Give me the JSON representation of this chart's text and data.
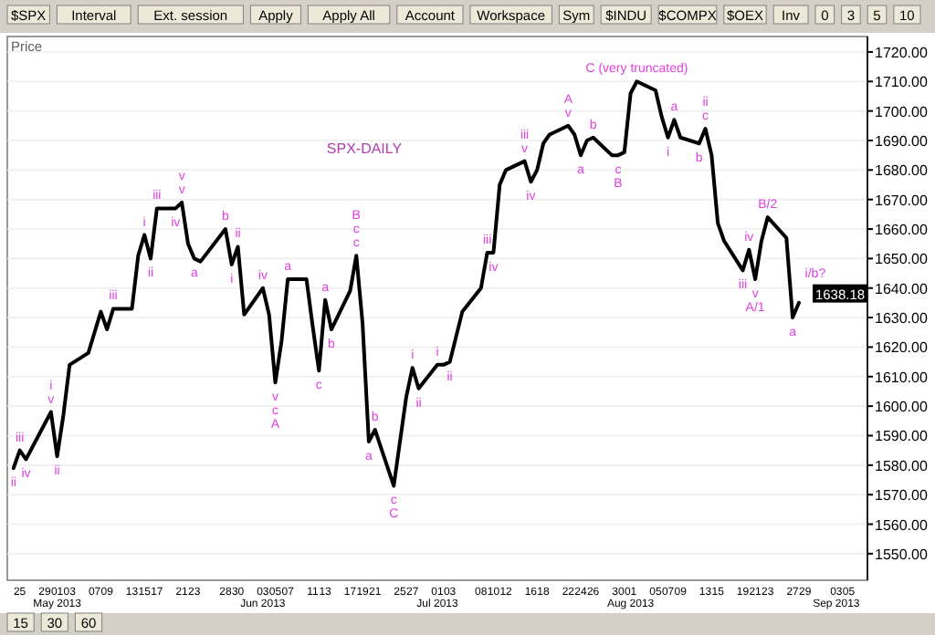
{
  "chart_data": {
    "type": "line",
    "title": "SPX-DAILY",
    "ylabel": "Price",
    "x": [
      "2013-04-24",
      "2013-04-25",
      "2013-04-26",
      "2013-04-29",
      "2013-04-30",
      "2013-05-01",
      "2013-05-02",
      "2013-05-03",
      "2013-05-06",
      "2013-05-07",
      "2013-05-08",
      "2013-05-09",
      "2013-05-10",
      "2013-05-13",
      "2013-05-14",
      "2013-05-15",
      "2013-05-16",
      "2013-05-17",
      "2013-05-20",
      "2013-05-21",
      "2013-05-22",
      "2013-05-23",
      "2013-05-24",
      "2013-05-28",
      "2013-05-29",
      "2013-05-30",
      "2013-05-31",
      "2013-06-03",
      "2013-06-04",
      "2013-06-05",
      "2013-06-06",
      "2013-06-07",
      "2013-06-10",
      "2013-06-11",
      "2013-06-12",
      "2013-06-13",
      "2013-06-14",
      "2013-06-17",
      "2013-06-18",
      "2013-06-19",
      "2013-06-20",
      "2013-06-21",
      "2013-06-24",
      "2013-06-25",
      "2013-06-26",
      "2013-06-27",
      "2013-06-28",
      "2013-07-01",
      "2013-07-02",
      "2013-07-03",
      "2013-07-05",
      "2013-07-08",
      "2013-07-09",
      "2013-07-10",
      "2013-07-11",
      "2013-07-12",
      "2013-07-15",
      "2013-07-16",
      "2013-07-17",
      "2013-07-18",
      "2013-07-19",
      "2013-07-22",
      "2013-07-23",
      "2013-07-24",
      "2013-07-25",
      "2013-07-26",
      "2013-07-29",
      "2013-07-30",
      "2013-07-31",
      "2013-08-01",
      "2013-08-02",
      "2013-08-05",
      "2013-08-06",
      "2013-08-07",
      "2013-08-08",
      "2013-08-09",
      "2013-08-12",
      "2013-08-13",
      "2013-08-14",
      "2013-08-15",
      "2013-08-16",
      "2013-08-19",
      "2013-08-20",
      "2013-08-21",
      "2013-08-22",
      "2013-08-23",
      "2013-08-26",
      "2013-08-27",
      "2013-08-28"
    ],
    "series": [
      {
        "color": "#000000",
        "values": [
          1579,
          1585,
          1582,
          1594,
          1598,
          1583,
          1597,
          1614,
          1618,
          1625,
          1632,
          1626,
          1633,
          1633,
          1651,
          1658,
          1650,
          1667,
          1667,
          1669,
          1655,
          1650,
          1649,
          1660,
          1648,
          1654,
          1631,
          1640,
          1631,
          1608,
          1622,
          1643,
          1643,
          1627,
          1612,
          1636,
          1626,
          1639,
          1651,
          1628,
          1588,
          1592,
          1573,
          1588,
          1603,
          1613,
          1606,
          1614,
          1614,
          1615,
          1632,
          1640,
          1652,
          1652,
          1675,
          1680,
          1683,
          1676,
          1680,
          1689,
          1692,
          1695,
          1692,
          1685,
          1690,
          1691,
          1685,
          1685,
          1686,
          1706,
          1710,
          1707,
          1698,
          1691,
          1697,
          1691,
          1689,
          1694,
          1685,
          1662,
          1656,
          1646,
          1653,
          1643,
          1656,
          1664,
          1657,
          1630,
          1635
        ]
      }
    ],
    "xlim": [
      "2013-04-23",
      "2013-09-08"
    ],
    "xticks": [
      {
        "value": "2013-04-25",
        "label": "25"
      },
      {
        "value": "2013-04-29",
        "label": "29"
      },
      {
        "value": "2013-05-01",
        "label": "01\nMay 2013"
      },
      {
        "value": "2013-05-03",
        "label": "03"
      },
      {
        "value": "2013-05-07",
        "label": "07"
      },
      {
        "value": "2013-05-09",
        "label": "09"
      },
      {
        "value": "2013-05-13",
        "label": "13"
      },
      {
        "value": "2013-05-15",
        "label": "15"
      },
      {
        "value": "2013-05-17",
        "label": "17"
      },
      {
        "value": "2013-05-21",
        "label": "21"
      },
      {
        "value": "2013-05-23",
        "label": "23"
      },
      {
        "value": "2013-05-28",
        "label": "28"
      },
      {
        "value": "2013-05-30",
        "label": "30"
      },
      {
        "value": "2013-06-03",
        "label": "03\nJun 2013"
      },
      {
        "value": "2013-06-05",
        "label": "05"
      },
      {
        "value": "2013-06-07",
        "label": "07"
      },
      {
        "value": "2013-06-11",
        "label": "11"
      },
      {
        "value": "2013-06-13",
        "label": "13"
      },
      {
        "value": "2013-06-17",
        "label": "17"
      },
      {
        "value": "2013-06-19",
        "label": "19"
      },
      {
        "value": "2013-06-21",
        "label": "21"
      },
      {
        "value": "2013-06-25",
        "label": "25"
      },
      {
        "value": "2013-06-27",
        "label": "27"
      },
      {
        "value": "2013-07-01",
        "label": "01\nJul 2013"
      },
      {
        "value": "2013-07-03",
        "label": "03"
      },
      {
        "value": "2013-07-08",
        "label": "08"
      },
      {
        "value": "2013-07-10",
        "label": "10"
      },
      {
        "value": "2013-07-12",
        "label": "12"
      },
      {
        "value": "2013-07-16",
        "label": "16"
      },
      {
        "value": "2013-07-18",
        "label": "18"
      },
      {
        "value": "2013-07-22",
        "label": "22"
      },
      {
        "value": "2013-07-24",
        "label": "24"
      },
      {
        "value": "2013-07-26",
        "label": "26"
      },
      {
        "value": "2013-07-30",
        "label": "30"
      },
      {
        "value": "2013-08-01",
        "label": "01\nAug 2013"
      },
      {
        "value": "2013-08-05",
        "label": "05"
      },
      {
        "value": "2013-08-07",
        "label": "07"
      },
      {
        "value": "2013-08-09",
        "label": "09"
      },
      {
        "value": "2013-08-13",
        "label": "13"
      },
      {
        "value": "2013-08-15",
        "label": "15"
      },
      {
        "value": "2013-08-19",
        "label": "19"
      },
      {
        "value": "2013-08-21",
        "label": "21"
      },
      {
        "value": "2013-08-23",
        "label": "23"
      },
      {
        "value": "2013-08-27",
        "label": "27"
      },
      {
        "value": "2013-08-29",
        "label": "29"
      },
      {
        "value": "2013-09-03",
        "label": "03\nSep 2013"
      },
      {
        "value": "2013-09-05",
        "label": "05"
      }
    ],
    "ylim": [
      1541,
      1724
    ],
    "yticks": [
      {
        "value": 1550,
        "label": "1550.00"
      },
      {
        "value": 1560,
        "label": "1560.00"
      },
      {
        "value": 1570,
        "label": "1570.00"
      },
      {
        "value": 1580,
        "label": "1580.00"
      },
      {
        "value": 1590,
        "label": "1590.00"
      },
      {
        "value": 1600,
        "label": "1600.00"
      },
      {
        "value": 1610,
        "label": "1610.00"
      },
      {
        "value": 1620,
        "label": "1620.00"
      },
      {
        "value": 1630,
        "label": "1630.00"
      },
      {
        "value": 1640,
        "label": "1640.00"
      },
      {
        "value": 1650,
        "label": "1650.00"
      },
      {
        "value": 1660,
        "label": "1660.00"
      },
      {
        "value": 1670,
        "label": "1670.00"
      },
      {
        "value": 1680,
        "label": "1680.00"
      },
      {
        "value": 1690,
        "label": "1690.00"
      },
      {
        "value": 1700,
        "label": "1700.00"
      },
      {
        "value": 1710,
        "label": "1710.00"
      },
      {
        "value": 1720,
        "label": "1720.00"
      }
    ],
    "grid": "y",
    "annotations": [
      "$SPX",
      "Interval",
      "Ext. session",
      "Apply",
      "Apply All",
      "Account",
      "Workspace",
      "Sym",
      "$INDU",
      "$COMPX",
      "$OEX",
      "Inv",
      "0",
      "3",
      "5",
      "10",
      "15",
      "30",
      "60",
      {
        "text": "1638.18",
        "y": 1638.18
      },
      {
        "text": "ii",
        "x": "2013-04-24",
        "y": 1579
      },
      {
        "text": "iii",
        "x": "2013-04-25",
        "y": 1585
      },
      {
        "text": "iv",
        "x": "2013-04-26",
        "y": 1582
      },
      {
        "text": "v",
        "x": "2013-04-30",
        "y": 1598
      },
      {
        "text": "i",
        "x": "2013-04-30",
        "y": 1598
      },
      {
        "text": "ii",
        "x": "2013-05-01",
        "y": 1583
      },
      {
        "text": "iii",
        "x": "2013-05-10",
        "y": 1633
      },
      {
        "text": "i",
        "x": "2013-05-15",
        "y": 1658
      },
      {
        "text": "ii",
        "x": "2013-05-16",
        "y": 1650
      },
      {
        "text": "iii",
        "x": "2013-05-17",
        "y": 1667
      },
      {
        "text": "iv",
        "x": "2013-05-20",
        "y": 1667
      },
      {
        "text": "v",
        "x": "2013-05-21",
        "y": 1669
      },
      {
        "text": "v",
        "x": "2013-05-21",
        "y": 1669
      },
      {
        "text": "a",
        "x": "2013-05-23",
        "y": 1650
      },
      {
        "text": "b",
        "x": "2013-05-28",
        "y": 1660
      },
      {
        "text": "i",
        "x": "2013-05-29",
        "y": 1648
      },
      {
        "text": "ii",
        "x": "2013-05-30",
        "y": 1654
      },
      {
        "text": "iv",
        "x": "2013-06-03",
        "y": 1640
      },
      {
        "text": "v",
        "x": "2013-06-05",
        "y": 1608
      },
      {
        "text": "c",
        "x": "2013-06-05",
        "y": 1608
      },
      {
        "text": "A",
        "x": "2013-06-05",
        "y": 1608
      },
      {
        "text": "a",
        "x": "2013-06-07",
        "y": 1643
      },
      {
        "text": "c",
        "x": "2013-06-12",
        "y": 1612
      },
      {
        "text": "a",
        "x": "2013-06-13",
        "y": 1636
      },
      {
        "text": "b",
        "x": "2013-06-14",
        "y": 1626
      },
      {
        "text": "c",
        "x": "2013-06-18",
        "y": 1651
      },
      {
        "text": "c",
        "x": "2013-06-18",
        "y": 1651
      },
      {
        "text": "B",
        "x": "2013-06-18",
        "y": 1651
      },
      {
        "text": "a",
        "x": "2013-06-20",
        "y": 1588
      },
      {
        "text": "b",
        "x": "2013-06-21",
        "y": 1592
      },
      {
        "text": "c",
        "x": "2013-06-24",
        "y": 1573
      },
      {
        "text": "C",
        "x": "2013-06-24",
        "y": 1573
      },
      {
        "text": "i",
        "x": "2013-06-27",
        "y": 1613
      },
      {
        "text": "ii",
        "x": "2013-06-28",
        "y": 1606
      },
      {
        "text": "i",
        "x": "2013-07-01",
        "y": 1614
      },
      {
        "text": "ii",
        "x": "2013-07-03",
        "y": 1615
      },
      {
        "text": "iii",
        "x": "2013-07-09",
        "y": 1652
      },
      {
        "text": "iv",
        "x": "2013-07-10",
        "y": 1652
      },
      {
        "text": "v",
        "x": "2013-07-15",
        "y": 1683
      },
      {
        "text": "iii",
        "x": "2013-07-15",
        "y": 1683
      },
      {
        "text": "iv",
        "x": "2013-07-16",
        "y": 1676
      },
      {
        "text": "v",
        "x": "2013-07-22",
        "y": 1695
      },
      {
        "text": "A",
        "x": "2013-07-22",
        "y": 1695
      },
      {
        "text": "a",
        "x": "2013-07-24",
        "y": 1685
      },
      {
        "text": "b",
        "x": "2013-07-26",
        "y": 1691
      },
      {
        "text": "c",
        "x": "2013-07-30",
        "y": 1685
      },
      {
        "text": "B",
        "x": "2013-07-30",
        "y": 1685
      },
      {
        "text": "C (very truncated)",
        "x": "2013-08-02",
        "y": 1710
      },
      {
        "text": "i",
        "x": "2013-08-07",
        "y": 1691
      },
      {
        "text": "a",
        "x": "2013-08-08",
        "y": 1697
      },
      {
        "text": "b",
        "x": "2013-08-12",
        "y": 1689
      },
      {
        "text": "c",
        "x": "2013-08-13",
        "y": 1694
      },
      {
        "text": "ii",
        "x": "2013-08-13",
        "y": 1694
      },
      {
        "text": "iii",
        "x": "2013-08-19",
        "y": 1646
      },
      {
        "text": "iv",
        "x": "2013-08-20",
        "y": 1653
      },
      {
        "text": "v",
        "x": "2013-08-21",
        "y": 1643
      },
      {
        "text": "A/1",
        "x": "2013-08-21",
        "y": 1643
      },
      {
        "text": "B/2",
        "x": "2013-08-23",
        "y": 1664
      },
      {
        "text": "a",
        "x": "2013-08-27",
        "y": 1630
      },
      {
        "text": "i/b?",
        "x": "2013-08-28",
        "y": 1635
      }
    ]
  }
}
